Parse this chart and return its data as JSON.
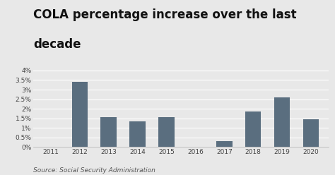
{
  "title_line1": "COLA percentage increase over the last",
  "title_line2": "decade",
  "categories": [
    "2011",
    "2012",
    "2013",
    "2014",
    "2015",
    "2016",
    "2017",
    "2018",
    "2019",
    "2020"
  ],
  "values": [
    0.0,
    3.4,
    1.55,
    1.35,
    1.55,
    0.0,
    0.3,
    1.85,
    2.6,
    1.45
  ],
  "bar_color": "#5a6e7f",
  "background_color": "#e8e8e8",
  "plot_bg_color": "#e8e8e8",
  "grid_color": "#ffffff",
  "ytick_vals": [
    0.0,
    0.005,
    0.01,
    0.015,
    0.02,
    0.025,
    0.03,
    0.035,
    0.04
  ],
  "ytick_labels": [
    "0%",
    "0.5%",
    "1%",
    "1.5%",
    "2%",
    "2.5%",
    "3%",
    "3.5%",
    "4%"
  ],
  "ylim": [
    0,
    0.043
  ],
  "source_text": "Source: Social Security Administration",
  "title_fontsize": 12,
  "tick_fontsize": 6.5,
  "source_fontsize": 6.5,
  "bar_width": 0.55
}
